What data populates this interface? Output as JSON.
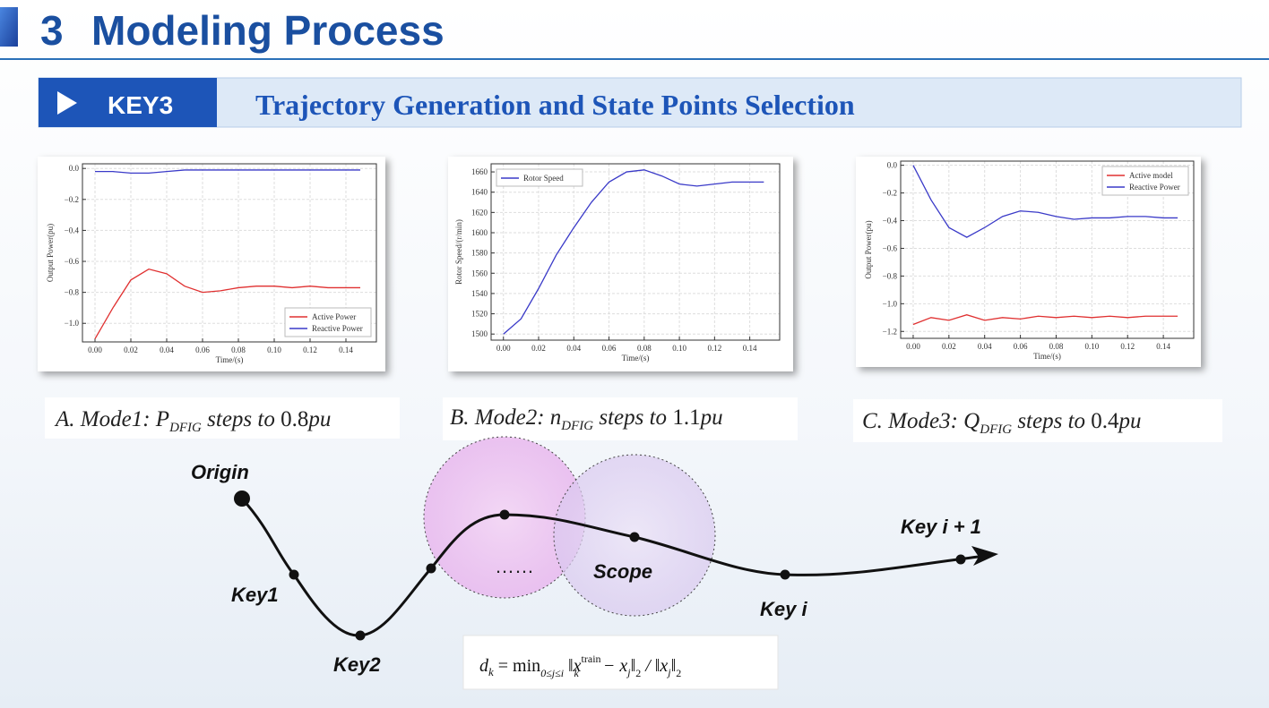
{
  "header": {
    "number": "3",
    "title": "Modeling Process"
  },
  "key": {
    "tag": "KEY3",
    "title": "Trajectory Generation and State Points Selection"
  },
  "charts": [
    {
      "type": "line",
      "xlabel": "Time/(s)",
      "ylabel": "Output Power(pu)",
      "x": [
        0,
        0.01,
        0.02,
        0.03,
        0.04,
        0.05,
        0.06,
        0.07,
        0.08,
        0.09,
        0.1,
        0.11,
        0.12,
        0.13,
        0.14,
        0.148
      ],
      "series": [
        {
          "name": "Active Power",
          "color": "#e03030",
          "values": [
            -1.1,
            -0.9,
            -0.72,
            -0.65,
            -0.68,
            -0.76,
            -0.8,
            -0.79,
            -0.77,
            -0.76,
            -0.76,
            -0.77,
            -0.76,
            -0.77,
            -0.77,
            -0.77
          ]
        },
        {
          "name": "Reactive Power",
          "color": "#3a3ac8",
          "values": [
            -0.02,
            -0.02,
            -0.03,
            -0.03,
            -0.02,
            -0.01,
            -0.01,
            -0.01,
            -0.01,
            -0.01,
            -0.01,
            -0.01,
            -0.01,
            -0.01,
            -0.01,
            -0.01
          ]
        }
      ],
      "xlim": [
        -0.007,
        0.157
      ],
      "ylim": [
        -1.12,
        0.03
      ],
      "xticks": [
        {
          "value": 0,
          "label": "0.00"
        },
        {
          "value": 0.02,
          "label": "0.02"
        },
        {
          "value": 0.04,
          "label": "0.04"
        },
        {
          "value": 0.06,
          "label": "0.06"
        },
        {
          "value": 0.08,
          "label": "0.08"
        },
        {
          "value": 0.1,
          "label": "0.10"
        },
        {
          "value": 0.12,
          "label": "0.12"
        },
        {
          "value": 0.14,
          "label": "0.14"
        }
      ],
      "yticks": [
        {
          "value": 0,
          "label": "0.0"
        },
        {
          "value": -0.2,
          "label": "−0.2"
        },
        {
          "value": -0.4,
          "label": "−0.4"
        },
        {
          "value": -0.6,
          "label": "−0.6"
        },
        {
          "value": -0.8,
          "label": "−0.8"
        },
        {
          "value": -1.0,
          "label": "−1.0"
        }
      ],
      "grid": true,
      "legend": "lower right"
    },
    {
      "type": "line",
      "xlabel": "Time/(s)",
      "ylabel": "Rotor Speed/(r/min)",
      "x": [
        0,
        0.01,
        0.02,
        0.03,
        0.04,
        0.05,
        0.06,
        0.07,
        0.08,
        0.09,
        0.1,
        0.11,
        0.12,
        0.13,
        0.14,
        0.148
      ],
      "series": [
        {
          "name": "Rotor Speed",
          "color": "#3a3ac8",
          "values": [
            1500,
            1515,
            1545,
            1578,
            1605,
            1630,
            1650,
            1660,
            1662,
            1656,
            1648,
            1646,
            1648,
            1650,
            1650,
            1650
          ]
        }
      ],
      "xlim": [
        -0.007,
        0.157
      ],
      "ylim": [
        1494,
        1668
      ],
      "xticks": [
        {
          "value": 0,
          "label": "0.00"
        },
        {
          "value": 0.02,
          "label": "0.02"
        },
        {
          "value": 0.04,
          "label": "0.04"
        },
        {
          "value": 0.06,
          "label": "0.06"
        },
        {
          "value": 0.08,
          "label": "0.08"
        },
        {
          "value": 0.1,
          "label": "0.10"
        },
        {
          "value": 0.12,
          "label": "0.12"
        },
        {
          "value": 0.14,
          "label": "0.14"
        }
      ],
      "yticks": [
        1500,
        1520,
        1540,
        1560,
        1580,
        1600,
        1620,
        1640,
        1660
      ],
      "grid": true,
      "legend": "upper left"
    },
    {
      "type": "line",
      "xlabel": "Time/(s)",
      "ylabel": "Output Power(pu)",
      "x": [
        0,
        0.01,
        0.02,
        0.03,
        0.04,
        0.05,
        0.06,
        0.07,
        0.08,
        0.09,
        0.1,
        0.11,
        0.12,
        0.13,
        0.14,
        0.148
      ],
      "series": [
        {
          "name": "Active model",
          "color": "#e03030",
          "values": [
            -1.15,
            -1.1,
            -1.12,
            -1.08,
            -1.12,
            -1.1,
            -1.11,
            -1.09,
            -1.1,
            -1.09,
            -1.1,
            -1.09,
            -1.1,
            -1.09,
            -1.09,
            -1.09
          ]
        },
        {
          "name": "Reactive Power",
          "color": "#3a3ac8",
          "values": [
            0,
            -0.25,
            -0.45,
            -0.52,
            -0.45,
            -0.37,
            -0.33,
            -0.34,
            -0.37,
            -0.39,
            -0.38,
            -0.38,
            -0.37,
            -0.37,
            -0.38,
            -0.38
          ]
        }
      ],
      "xlim": [
        -0.007,
        0.157
      ],
      "ylim": [
        -1.25,
        0.03
      ],
      "xticks": [
        {
          "value": 0,
          "label": "0.00"
        },
        {
          "value": 0.02,
          "label": "0.02"
        },
        {
          "value": 0.04,
          "label": "0.04"
        },
        {
          "value": 0.06,
          "label": "0.06"
        },
        {
          "value": 0.08,
          "label": "0.08"
        },
        {
          "value": 0.1,
          "label": "0.10"
        },
        {
          "value": 0.12,
          "label": "0.12"
        },
        {
          "value": 0.14,
          "label": "0.14"
        }
      ],
      "yticks": [
        {
          "value": 0,
          "label": "0.0"
        },
        {
          "value": -0.2,
          "label": "−0.2"
        },
        {
          "value": -0.4,
          "label": "−0.4"
        },
        {
          "value": -0.6,
          "label": "−0.6"
        },
        {
          "value": -0.8,
          "label": "−0.8"
        },
        {
          "value": -1.0,
          "label": "−1.0"
        },
        {
          "value": -1.2,
          "label": "−1.2"
        }
      ],
      "grid": true,
      "legend": "upper right"
    }
  ],
  "captions": [
    [
      "A.  Mode1: ",
      "P",
      "DFIG",
      " steps to ",
      "0.8",
      "pu"
    ],
    [
      "B.  Mode2: ",
      "n",
      "DFIG",
      " steps to ",
      "1.1",
      "pu"
    ],
    [
      "C.  Mode3: ",
      "Q",
      "DFIG",
      " steps to ",
      "0.4",
      "pu"
    ]
  ],
  "diagram": {
    "origin": "Origin",
    "key1": "Key1",
    "key2": "Key2",
    "dots": "……",
    "scope": "Scope",
    "key_i": "Key i",
    "key_i1": "Key i + 1"
  },
  "formula": [
    "d",
    "k",
    " = min",
    "0≤j≤i",
    " ‖x",
    "train",
    "k",
    " − x",
    "j",
    "‖",
    "2",
    " / ‖x",
    "j",
    "‖",
    "2"
  ]
}
